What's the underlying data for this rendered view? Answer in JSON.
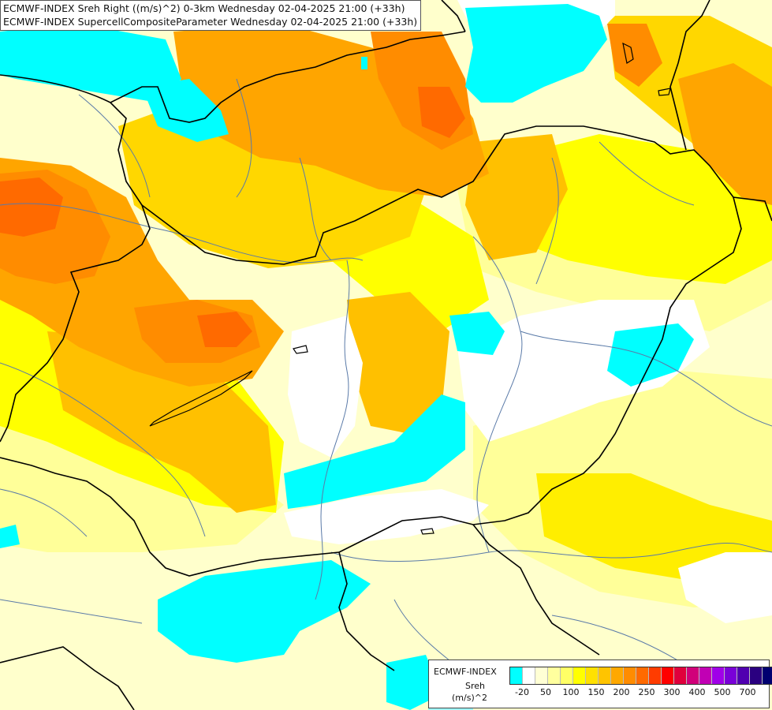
{
  "title": {
    "line1": "ECMWF-INDEX Sreh Right ((m/s)^2) 0-3km Wednesday 02-04-2025 21:00 (+33h)",
    "line2": "ECMWF-INDEX SupercellCompositeParameter Wednesday 02-04-2025 21:00 (+33h)"
  },
  "legend": {
    "provider": "ECMWF-INDEX",
    "parameter": "Sreh",
    "unit": "(m/s)^2",
    "colors": [
      "#00ffff",
      "#ffffff",
      "#ffffd4",
      "#ffff9e",
      "#ffff66",
      "#ffff00",
      "#ffe100",
      "#ffc400",
      "#ffa800",
      "#ff8c00",
      "#ff6a00",
      "#ff3c00",
      "#ff0000",
      "#e0003c",
      "#d1007a",
      "#c100b4",
      "#a000e8",
      "#7a00d8",
      "#5000b0",
      "#2a0080",
      "#000070"
    ],
    "ticks": [
      "-20",
      "50",
      "100",
      "150",
      "200",
      "250",
      "300",
      "400",
      "500",
      "700"
    ]
  },
  "palette": {
    "cyan": "#00ffff",
    "pale": "#ffffcc",
    "light_yellow": "#ffff99",
    "yellow": "#ffff00",
    "gold": "#ffd700",
    "amber": "#ffc000",
    "orange": "#ffa500",
    "dark_orange": "#ff8000",
    "red_orange": "#ff6000",
    "border": "#000000",
    "river": "#5a7aa8"
  }
}
